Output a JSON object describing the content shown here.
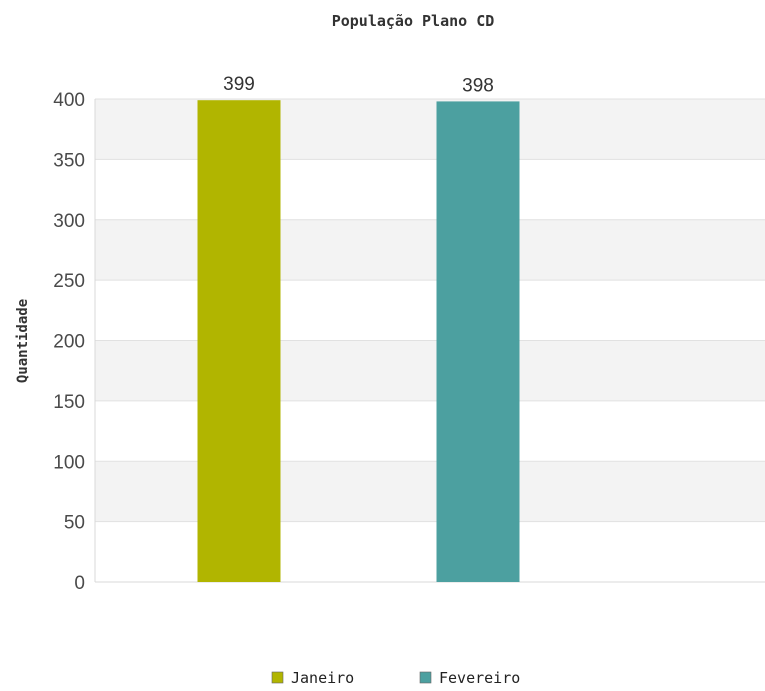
{
  "chart_data": {
    "type": "bar",
    "title": "População Plano CD",
    "xlabel": "",
    "ylabel": "Quantidade",
    "ylim": [
      0,
      400
    ],
    "yticks": [
      0,
      50,
      100,
      150,
      200,
      250,
      300,
      350,
      400
    ],
    "series": [
      {
        "name": "Janeiro",
        "value": 399,
        "color": "#b1b500"
      },
      {
        "name": "Fevereiro",
        "value": 398,
        "color": "#4ca0a0"
      }
    ],
    "grid": true,
    "legend_position": "bottom"
  }
}
